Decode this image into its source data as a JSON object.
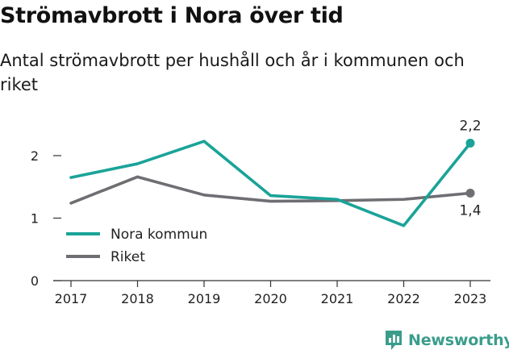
{
  "chart_data": {
    "type": "line",
    "title": "Strömavbrott i Nora över tid",
    "subtitle": "Antal strömavbrott per hushåll och år i kommunen och riket",
    "categories": [
      "2017",
      "2018",
      "2019",
      "2020",
      "2021",
      "2022",
      "2023"
    ],
    "series": [
      {
        "name": "Nora kommun",
        "color": "#1aa398",
        "values": [
          1.65,
          1.87,
          2.23,
          1.36,
          1.3,
          0.88,
          2.2
        ],
        "end_label": "2,2"
      },
      {
        "name": "Riket",
        "color": "#6e6e73",
        "values": [
          1.24,
          1.66,
          1.37,
          1.27,
          1.28,
          1.3,
          1.4
        ],
        "end_label": "1,4"
      }
    ],
    "yticks": [
      0,
      1,
      2
    ],
    "ylim": [
      0,
      2.6
    ],
    "grid": false,
    "legend_position": "bottom-left"
  },
  "brand": {
    "name": "Newsworthy",
    "icon": "newsworthy-bar-chart-icon",
    "color": "#3a9d8c"
  }
}
